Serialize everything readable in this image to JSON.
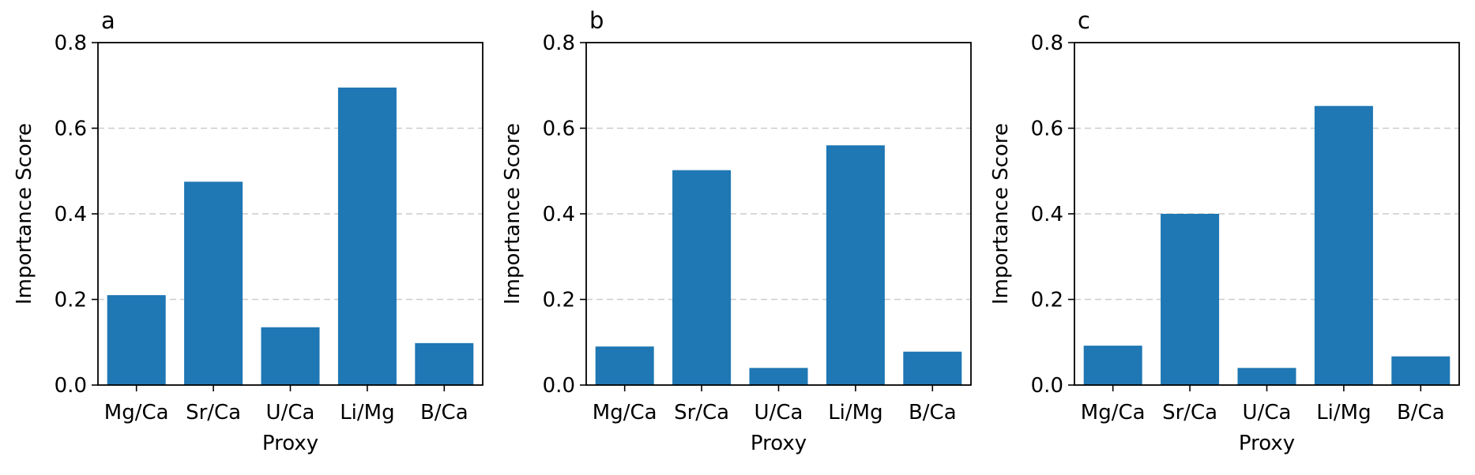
{
  "chart_data": [
    {
      "type": "bar",
      "panel_label": "a",
      "categories": [
        "Mg/Ca",
        "Sr/Ca",
        "U/Ca",
        "Li/Mg",
        "B/Ca"
      ],
      "values": [
        0.21,
        0.475,
        0.135,
        0.695,
        0.098
      ],
      "xlabel": "Proxy",
      "ylabel": "Importance Score",
      "ylim": [
        0,
        0.8
      ],
      "yticks": [
        "0.0",
        "0.2",
        "0.4",
        "0.6",
        "0.8"
      ],
      "grid": "y-dashed",
      "bar_color": "#1f77b4"
    },
    {
      "type": "bar",
      "panel_label": "b",
      "categories": [
        "Mg/Ca",
        "Sr/Ca",
        "U/Ca",
        "Li/Mg",
        "B/Ca"
      ],
      "values": [
        0.09,
        0.502,
        0.04,
        0.56,
        0.078
      ],
      "xlabel": "Proxy",
      "ylabel": "Importance Score",
      "ylim": [
        0,
        0.8
      ],
      "yticks": [
        "0.0",
        "0.2",
        "0.4",
        "0.6",
        "0.8"
      ],
      "grid": "y-dashed",
      "bar_color": "#1f77b4"
    },
    {
      "type": "bar",
      "panel_label": "c",
      "categories": [
        "Mg/Ca",
        "Sr/Ca",
        "U/Ca",
        "Li/Mg",
        "B/Ca"
      ],
      "values": [
        0.092,
        0.4,
        0.04,
        0.652,
        0.067
      ],
      "xlabel": "Proxy",
      "ylabel": "Importance Score",
      "ylim": [
        0,
        0.8
      ],
      "yticks": [
        "0.0",
        "0.2",
        "0.4",
        "0.6",
        "0.8"
      ],
      "grid": "y-dashed",
      "bar_color": "#1f77b4"
    }
  ]
}
